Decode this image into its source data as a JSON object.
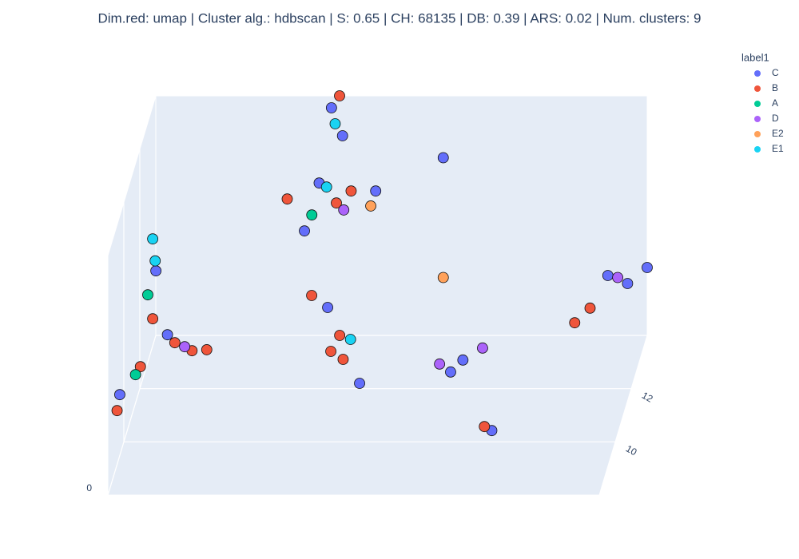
{
  "chart_data": {
    "type": "scatter3d",
    "title": "Dim.red: umap | Cluster alg.: hdbscan | S: 0.65 | CH: 68135 | DB: 0.39 | ARS:  0.02 | Num. clusters: 9",
    "legend_title": "label1",
    "xlim": [
      -5,
      15
    ],
    "ylim": [
      8,
      14
    ],
    "zlim": [
      0,
      24
    ],
    "yticks": [
      10,
      12
    ],
    "zticks": [
      0
    ],
    "grid": true,
    "series": [
      {
        "name": "C",
        "color": "#636efa",
        "x": [
          -3.37,
          -2.9,
          -4.84,
          2.3,
          1.7,
          4.6,
          2.15,
          2.6,
          2.97,
          4.27,
          8.8,
          8.3,
          10.3,
          15,
          13.4,
          14.2,
          6.7
        ],
        "y": [
          9,
          9,
          9,
          12,
          12,
          12,
          14,
          14,
          11,
          11,
          10,
          10,
          9,
          14,
          14,
          14,
          14
        ],
        "z": [
          19.8,
          13.4,
          7.4,
          20.6,
          15.8,
          19.8,
          22.8,
          20,
          10.8,
          3.2,
          8.2,
          7.0,
          3.8,
          6.8,
          6.0,
          5.2,
          17.8
        ]
      },
      {
        "name": "B",
        "color": "#EF553B",
        "x": [
          -3.5,
          -1.9,
          -1.3,
          -4.0,
          -4.95,
          -2.6,
          1.0,
          3.6,
          3.0,
          2.48,
          2.32,
          3.46,
          3.6,
          3.1,
          10.0,
          13.0,
          12.7
        ],
        "y": [
          9,
          9,
          9,
          9,
          9,
          9,
          12,
          12,
          12,
          14,
          11,
          11,
          11,
          11,
          9,
          13,
          12
        ],
        "z": [
          15.0,
          11.8,
          11.9,
          10.2,
          5.8,
          12.6,
          19.0,
          19.8,
          18.6,
          24,
          12,
          8.0,
          5.6,
          6.4,
          4.2,
          5.4,
          6.6
        ]
      },
      {
        "name": "A",
        "color": "#00cc96",
        "x": [
          -3.7,
          -4.2,
          2.0
        ],
        "y": [
          9,
          9,
          12
        ],
        "z": [
          17.4,
          9.4,
          17.4
        ]
      },
      {
        "name": "D",
        "color": "#ab63fa",
        "x": [
          -2.2,
          3.3,
          9.6,
          7.85,
          13.8
        ],
        "y": [
          9,
          12,
          10,
          10,
          14
        ],
        "z": [
          12.2,
          17.9,
          9.4,
          7.8,
          5.8
        ]
      },
      {
        "name": "E2",
        "color": "#FFA15A",
        "x": [
          6.7,
          4.4
        ],
        "y": [
          14,
          12
        ],
        "z": [
          5.8,
          18.3
        ]
      },
      {
        "name": "E1",
        "color": "#19d3f3",
        "x": [
          -3.5,
          -3.4,
          2.3,
          2.6,
          3.9
        ],
        "y": [
          9,
          9,
          14,
          12,
          11
        ],
        "z": [
          23.0,
          20.8,
          21.2,
          20.2,
          7.6
        ]
      }
    ]
  }
}
